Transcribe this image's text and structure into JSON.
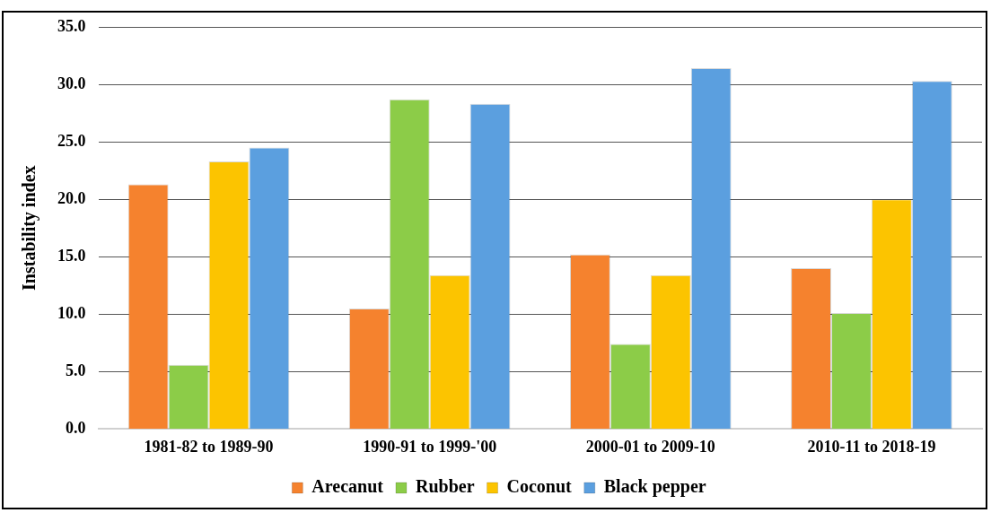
{
  "chart_data": {
    "type": "bar",
    "ylabel": "Instability index",
    "categories": [
      "1981-82 to 1989-90",
      "1990-91 to 1999-'00",
      "2000-01 to 2009-10",
      "2010-11 to 2018-19"
    ],
    "series": [
      {
        "name": "Arecanut",
        "color": "#f5822e",
        "values": [
          21.3,
          10.5,
          15.2,
          14.0
        ]
      },
      {
        "name": "Rubber",
        "color": "#8ccc48",
        "values": [
          5.6,
          28.7,
          7.4,
          10.1
        ]
      },
      {
        "name": "Coconut",
        "color": "#fcc400",
        "values": [
          23.3,
          13.4,
          13.4,
          20.0
        ]
      },
      {
        "name": "Black pepper",
        "color": "#5b9fdf",
        "values": [
          24.5,
          28.3,
          31.4,
          30.3
        ]
      }
    ],
    "ylim": [
      0,
      35
    ],
    "yticks": [
      {
        "value": 0,
        "label": "0.0"
      },
      {
        "value": 5,
        "label": "5.0"
      },
      {
        "value": 10,
        "label": "10.0"
      },
      {
        "value": 15,
        "label": "15.0"
      },
      {
        "value": 20,
        "label": "20.0"
      },
      {
        "value": 25,
        "label": "25.0"
      },
      {
        "value": 30,
        "label": "30.0"
      },
      {
        "value": 35,
        "label": "35.0"
      }
    ],
    "grid": "y",
    "legend": "bottom"
  }
}
